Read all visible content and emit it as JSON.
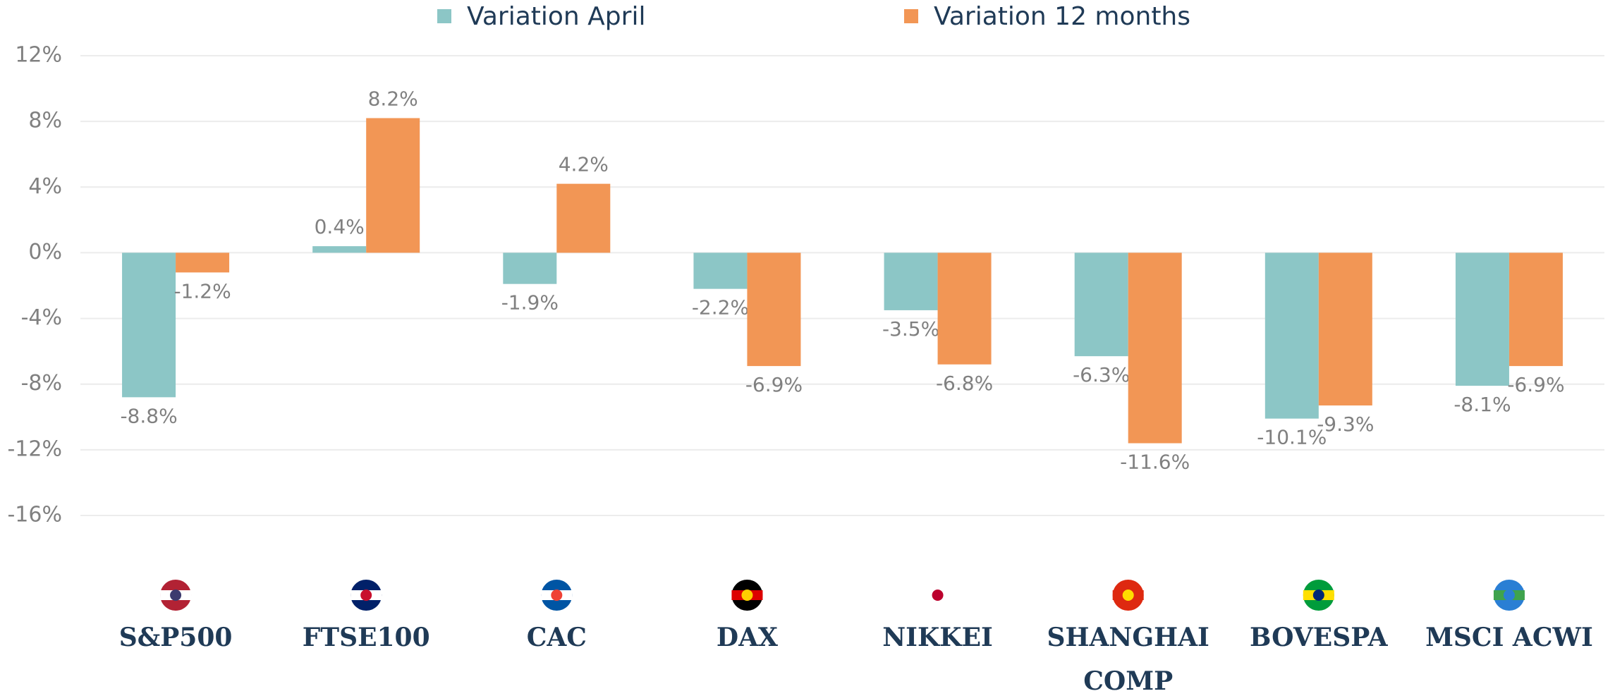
{
  "chart_data": {
    "type": "bar",
    "categories": [
      "S&P500",
      "FTSE100",
      "CAC",
      "DAX",
      "NIKKEI",
      "SHANGHAI COMP",
      "BOVESPA",
      "MSCI ACWI"
    ],
    "series": [
      {
        "name": "Variation April",
        "color": "#8cc6c6",
        "values": [
          -8.8,
          0.4,
          -1.9,
          -2.2,
          -3.5,
          -6.3,
          -10.1,
          -8.1
        ],
        "value_labels": [
          "-8.8%",
          "0.4%",
          "-1.9%",
          "-2.2%",
          "-3.5%",
          "-6.3%",
          "-10.1%",
          "-8.1%"
        ]
      },
      {
        "name": "Variation 12 months",
        "color": "#f29655",
        "values": [
          -1.2,
          8.2,
          4.2,
          -6.9,
          -6.8,
          -11.6,
          -9.3,
          -6.9
        ],
        "value_labels": [
          "-1.2%",
          "8.2%",
          "4.2%",
          "-6.9%",
          "-6.8%",
          "-11.6%",
          "-9.3%",
          "-6.9%"
        ]
      }
    ],
    "ylim": [
      -16,
      12
    ],
    "yticks": [
      {
        "value": 12,
        "label": "12%"
      },
      {
        "value": 8,
        "label": "8%"
      },
      {
        "value": 4,
        "label": "4%"
      },
      {
        "value": 0,
        "label": "0%"
      },
      {
        "value": -4,
        "label": "-4%"
      },
      {
        "value": -8,
        "label": "-8%"
      },
      {
        "value": -12,
        "label": "-12%"
      },
      {
        "value": -16,
        "label": "-16%"
      }
    ],
    "grid": true,
    "legend": "top"
  }
}
